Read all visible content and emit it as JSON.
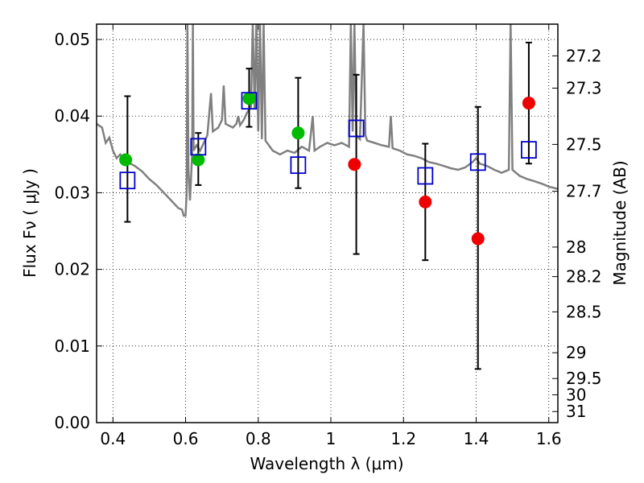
{
  "chart_data": {
    "type": "scatter",
    "xlabel": "Wavelength  λ (μm)",
    "ylabel": "Flux  Fν  ( μJy )",
    "y2label": "Magnitude (AB)",
    "xlim": [
      0.355,
      1.625
    ],
    "ylim": [
      0.0,
      0.052
    ],
    "grid": true,
    "x_ticks": [
      {
        "value": 0.4,
        "label": "0.4"
      },
      {
        "value": 0.6,
        "label": "0.6"
      },
      {
        "value": 0.8,
        "label": "0.8"
      },
      {
        "value": 1.0,
        "label": "1"
      },
      {
        "value": 1.2,
        "label": "1.2"
      },
      {
        "value": 1.4,
        "label": "1.4"
      },
      {
        "value": 1.6,
        "label": "1.6"
      }
    ],
    "y_ticks": [
      {
        "value": 0.0,
        "label": "0.00"
      },
      {
        "value": 0.01,
        "label": "0.01"
      },
      {
        "value": 0.02,
        "label": "0.02"
      },
      {
        "value": 0.03,
        "label": "0.03"
      },
      {
        "value": 0.04,
        "label": "0.04"
      },
      {
        "value": 0.05,
        "label": "0.05"
      }
    ],
    "y2_ticks": [
      {
        "value": 27.2,
        "label": "27.2"
      },
      {
        "value": 27.3,
        "label": "27.3"
      },
      {
        "value": 27.5,
        "label": "27.5"
      },
      {
        "value": 27.7,
        "label": "27.7"
      },
      {
        "value": 28.0,
        "label": "28"
      },
      {
        "value": 28.2,
        "label": "28.2"
      },
      {
        "value": 28.5,
        "label": "28.5"
      },
      {
        "value": 29.0,
        "label": "29"
      },
      {
        "value": 29.5,
        "label": "29.5"
      },
      {
        "value": 30.0,
        "label": "30"
      },
      {
        "value": 31.0,
        "label": "31"
      }
    ],
    "series": [
      {
        "kind": "line",
        "color": "#808080",
        "points": [
          [
            0.355,
            0.039
          ],
          [
            0.37,
            0.0385
          ],
          [
            0.38,
            0.0365
          ],
          [
            0.39,
            0.0372
          ],
          [
            0.4,
            0.0355
          ],
          [
            0.41,
            0.0345
          ],
          [
            0.42,
            0.035
          ],
          [
            0.43,
            0.0344
          ],
          [
            0.44,
            0.034
          ],
          [
            0.46,
            0.0335
          ],
          [
            0.48,
            0.0328
          ],
          [
            0.5,
            0.0318
          ],
          [
            0.52,
            0.031
          ],
          [
            0.54,
            0.03
          ],
          [
            0.56,
            0.029
          ],
          [
            0.58,
            0.028
          ],
          [
            0.59,
            0.0278
          ],
          [
            0.595,
            0.027
          ],
          [
            0.6,
            0.027
          ],
          [
            0.603,
            0.03
          ],
          [
            0.605,
            0.052
          ],
          [
            0.608,
            0.033
          ],
          [
            0.612,
            0.029
          ],
          [
            0.618,
            0.035
          ],
          [
            0.62,
            0.052
          ],
          [
            0.622,
            0.0355
          ],
          [
            0.63,
            0.0362
          ],
          [
            0.64,
            0.0355
          ],
          [
            0.66,
            0.0375
          ],
          [
            0.67,
            0.043
          ],
          [
            0.675,
            0.038
          ],
          [
            0.69,
            0.0385
          ],
          [
            0.7,
            0.0395
          ],
          [
            0.705,
            0.044
          ],
          [
            0.71,
            0.039
          ],
          [
            0.73,
            0.0385
          ],
          [
            0.74,
            0.039
          ],
          [
            0.745,
            0.04
          ],
          [
            0.75,
            0.0388
          ],
          [
            0.76,
            0.0395
          ],
          [
            0.77,
            0.0405
          ],
          [
            0.78,
            0.0412
          ],
          [
            0.785,
            0.052
          ],
          [
            0.79,
            0.041
          ],
          [
            0.795,
            0.052
          ],
          [
            0.8,
            0.038
          ],
          [
            0.805,
            0.052
          ],
          [
            0.81,
            0.037
          ],
          [
            0.815,
            0.052
          ],
          [
            0.82,
            0.0368
          ],
          [
            0.84,
            0.0355
          ],
          [
            0.86,
            0.035
          ],
          [
            0.88,
            0.0355
          ],
          [
            0.9,
            0.0352
          ],
          [
            0.92,
            0.036
          ],
          [
            0.94,
            0.0355
          ],
          [
            0.95,
            0.04
          ],
          [
            0.955,
            0.0355
          ],
          [
            0.97,
            0.036
          ],
          [
            0.99,
            0.0365
          ],
          [
            1.01,
            0.0362
          ],
          [
            1.03,
            0.0365
          ],
          [
            1.05,
            0.036
          ],
          [
            1.055,
            0.052
          ],
          [
            1.06,
            0.038
          ],
          [
            1.065,
            0.052
          ],
          [
            1.07,
            0.0375
          ],
          [
            1.08,
            0.037
          ],
          [
            1.09,
            0.052
          ],
          [
            1.095,
            0.0375
          ],
          [
            1.1,
            0.0368
          ],
          [
            1.12,
            0.0365
          ],
          [
            1.14,
            0.0362
          ],
          [
            1.16,
            0.036
          ],
          [
            1.165,
            0.04
          ],
          [
            1.17,
            0.0358
          ],
          [
            1.19,
            0.0355
          ],
          [
            1.21,
            0.035
          ],
          [
            1.23,
            0.0348
          ],
          [
            1.25,
            0.0345
          ],
          [
            1.27,
            0.034
          ],
          [
            1.29,
            0.0338
          ],
          [
            1.31,
            0.0335
          ],
          [
            1.33,
            0.0332
          ],
          [
            1.35,
            0.033
          ],
          [
            1.37,
            0.0333
          ],
          [
            1.39,
            0.034
          ],
          [
            1.4,
            0.0345
          ],
          [
            1.41,
            0.0338
          ],
          [
            1.43,
            0.0335
          ],
          [
            1.45,
            0.033
          ],
          [
            1.47,
            0.0326
          ],
          [
            1.49,
            0.033
          ],
          [
            1.495,
            0.052
          ],
          [
            1.5,
            0.033
          ],
          [
            1.52,
            0.0322
          ],
          [
            1.54,
            0.0318
          ],
          [
            1.56,
            0.0315
          ],
          [
            1.58,
            0.0312
          ],
          [
            1.6,
            0.0308
          ],
          [
            1.625,
            0.0305
          ]
        ]
      },
      {
        "kind": "errorbar",
        "color": "#000000",
        "bars": [
          {
            "x": 0.44,
            "lo": 0.0262,
            "hi": 0.0426
          },
          {
            "x": 0.635,
            "lo": 0.031,
            "hi": 0.0378
          },
          {
            "x": 0.775,
            "lo": 0.0386,
            "hi": 0.0462
          },
          {
            "x": 0.91,
            "lo": 0.0306,
            "hi": 0.045
          },
          {
            "x": 1.07,
            "lo": 0.022,
            "hi": 0.0454
          },
          {
            "x": 1.26,
            "lo": 0.0212,
            "hi": 0.0364
          },
          {
            "x": 1.405,
            "lo": 0.007,
            "hi": 0.0412
          },
          {
            "x": 1.545,
            "lo": 0.0338,
            "hi": 0.0496
          }
        ]
      },
      {
        "kind": "circle",
        "color": "#00bb00",
        "points": [
          [
            0.435,
            0.0343
          ],
          [
            0.635,
            0.0343
          ],
          [
            0.775,
            0.0423
          ],
          [
            0.91,
            0.0378
          ]
        ]
      },
      {
        "kind": "circle",
        "color": "#ee0000",
        "points": [
          [
            1.065,
            0.0337
          ],
          [
            1.26,
            0.0288
          ],
          [
            1.405,
            0.024
          ],
          [
            1.545,
            0.0417
          ]
        ]
      },
      {
        "kind": "square",
        "color": "#0000cc",
        "points": [
          [
            0.44,
            0.0316
          ],
          [
            0.635,
            0.036
          ],
          [
            0.775,
            0.042
          ],
          [
            0.91,
            0.0336
          ],
          [
            1.07,
            0.0384
          ],
          [
            1.26,
            0.0322
          ],
          [
            1.405,
            0.034
          ],
          [
            1.545,
            0.0356
          ]
        ]
      }
    ]
  }
}
